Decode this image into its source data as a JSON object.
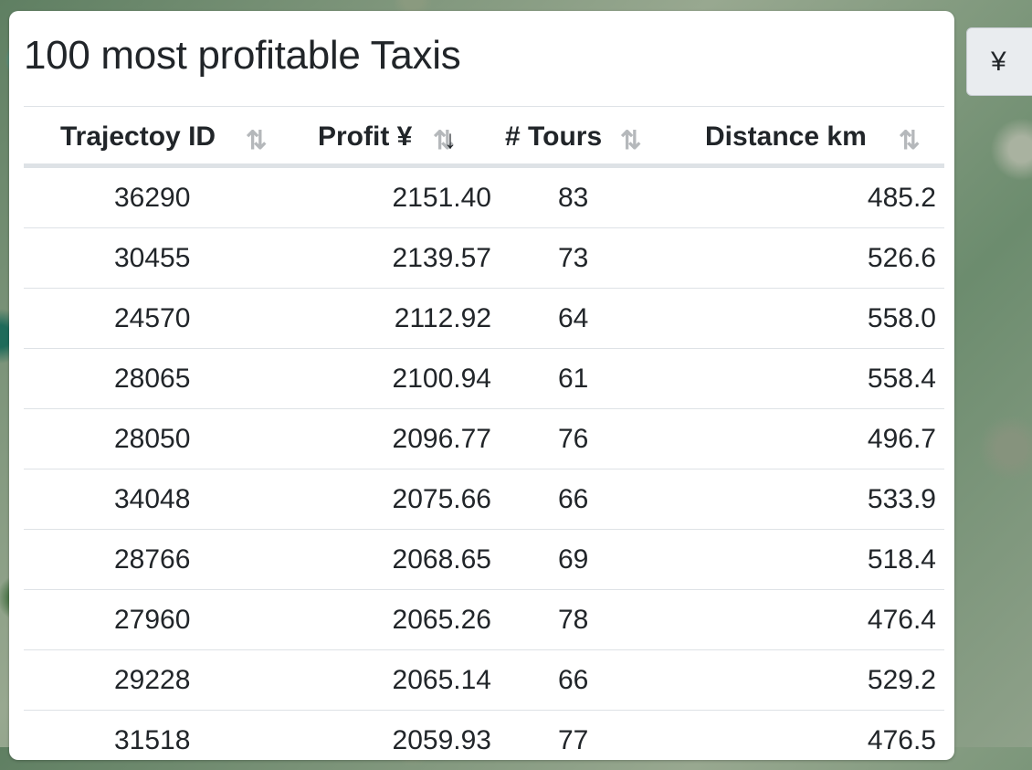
{
  "panel": {
    "title": "100 most profitable Taxis"
  },
  "table": {
    "headers": [
      {
        "label": "Trajectoy ID",
        "sort": "none"
      },
      {
        "label": "Profit ¥",
        "sort": "desc"
      },
      {
        "label": "# Tours",
        "sort": "none"
      },
      {
        "label": "Distance km",
        "sort": "none"
      }
    ],
    "rows": [
      [
        "36290",
        "2151.40",
        "83",
        "485.2"
      ],
      [
        "30455",
        "2139.57",
        "73",
        "526.6"
      ],
      [
        "24570",
        "2112.92",
        "64",
        "558.0"
      ],
      [
        "28065",
        "2100.94",
        "61",
        "558.4"
      ],
      [
        "28050",
        "2096.77",
        "76",
        "496.7"
      ],
      [
        "34048",
        "2075.66",
        "66",
        "533.9"
      ],
      [
        "28766",
        "2068.65",
        "69",
        "518.4"
      ],
      [
        "27960",
        "2065.26",
        "78",
        "476.4"
      ],
      [
        "29228",
        "2065.14",
        "66",
        "529.2"
      ],
      [
        "31518",
        "2059.93",
        "77",
        "476.5"
      ]
    ]
  },
  "currency_button": {
    "label": "¥"
  },
  "icons": {
    "sort_neutral": "⇅",
    "sort_desc": "↓"
  },
  "colors": {
    "text": "#212529",
    "sort_inactive": "#b5b8bb",
    "border": "#dee2e6",
    "button_bg": "#e9ecef"
  }
}
